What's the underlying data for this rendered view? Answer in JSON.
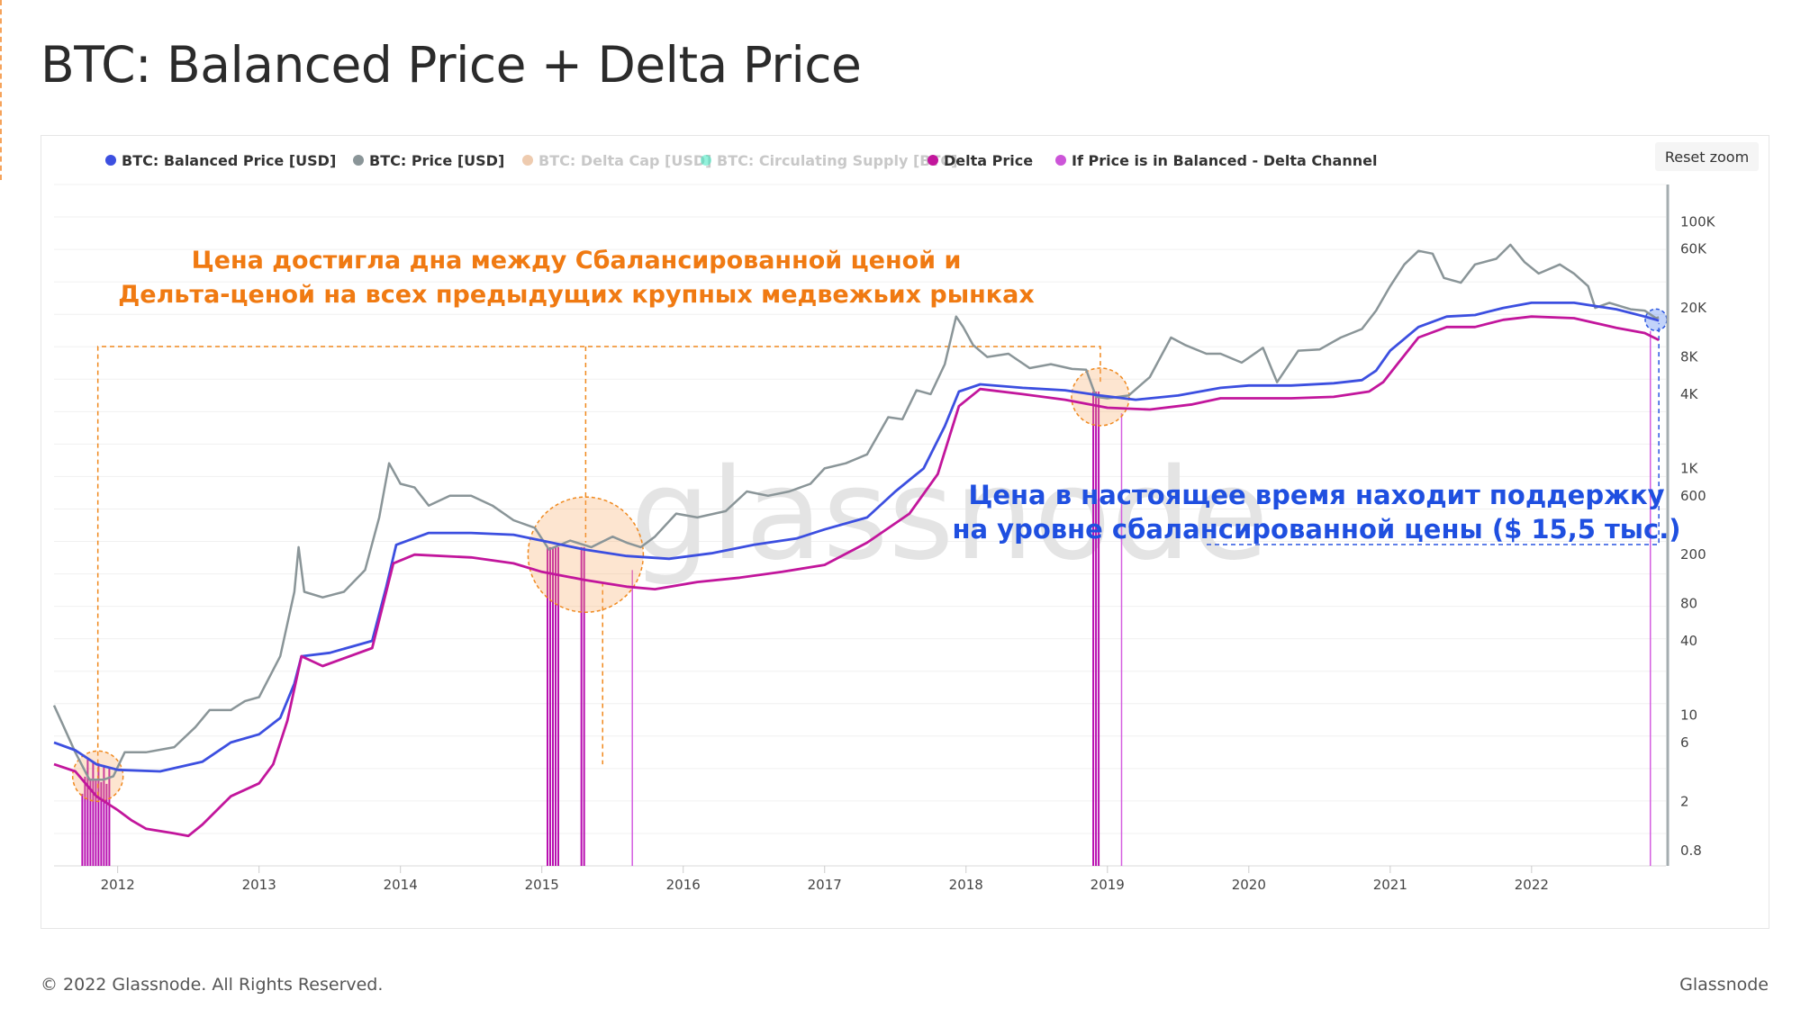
{
  "page": {
    "title": "BTC: Balanced Price + Delta Price",
    "reset_zoom": "Reset zoom",
    "footer_left": "© 2022 Glassnode. All Rights Reserved.",
    "footer_right": "Glassnode",
    "watermark": "glassnode"
  },
  "chart_data": {
    "type": "line",
    "title": "BTC: Balanced Price + Delta Price",
    "yscale": "log",
    "ylim": [
      0.6,
      200000
    ],
    "xlim": [
      2011.55,
      2022.95
    ],
    "x_ticks": [
      "2012",
      "2013",
      "2014",
      "2015",
      "2016",
      "2017",
      "2018",
      "2019",
      "2020",
      "2021",
      "2022"
    ],
    "y_ticks": [
      {
        "label": "100K",
        "value": 100000
      },
      {
        "label": "60K",
        "value": 60000
      },
      {
        "label": "20K",
        "value": 20000
      },
      {
        "label": "8K",
        "value": 8000
      },
      {
        "label": "4K",
        "value": 4000
      },
      {
        "label": "1K",
        "value": 1000
      },
      {
        "label": "600",
        "value": 600
      },
      {
        "label": "200",
        "value": 200
      },
      {
        "label": "80",
        "value": 80
      },
      {
        "label": "40",
        "value": 40
      },
      {
        "label": "10",
        "value": 10
      },
      {
        "label": "6",
        "value": 6
      },
      {
        "label": "2",
        "value": 2
      },
      {
        "label": "0.8",
        "value": 0.8
      }
    ],
    "legend": [
      {
        "name": "BTC: Balanced Price [USD]",
        "color": "#3c4fe0",
        "active": true
      },
      {
        "name": "BTC: Price [USD]",
        "color": "#8a9598",
        "active": true
      },
      {
        "name": "BTC: Delta Cap [USD]",
        "color": "#e0a06e",
        "active": false
      },
      {
        "name": "BTC: Circulating Supply [BTC]",
        "color": "#3ce8c0",
        "active": false
      },
      {
        "name": "Delta Price",
        "color": "#c2169c",
        "active": true
      },
      {
        "name": "If Price is in Balanced - Delta Channel",
        "color": "#cc55d8",
        "active": true
      }
    ],
    "series": [
      {
        "name": "BTC: Price [USD]",
        "color": "#8a9598",
        "points": [
          [
            2011.55,
            12
          ],
          [
            2011.62,
            8
          ],
          [
            2011.7,
            5
          ],
          [
            2011.8,
            3
          ],
          [
            2011.9,
            3
          ],
          [
            2011.97,
            3.2
          ],
          [
            2012.05,
            5
          ],
          [
            2012.2,
            5
          ],
          [
            2012.4,
            5.5
          ],
          [
            2012.55,
            8
          ],
          [
            2012.65,
            11
          ],
          [
            2012.8,
            11
          ],
          [
            2012.9,
            13
          ],
          [
            2013.0,
            14
          ],
          [
            2013.15,
            30
          ],
          [
            2013.25,
            100
          ],
          [
            2013.28,
            230
          ],
          [
            2013.32,
            100
          ],
          [
            2013.45,
            90
          ],
          [
            2013.6,
            100
          ],
          [
            2013.75,
            150
          ],
          [
            2013.85,
            400
          ],
          [
            2013.92,
            1100
          ],
          [
            2014.0,
            750
          ],
          [
            2014.1,
            700
          ],
          [
            2014.2,
            500
          ],
          [
            2014.35,
            600
          ],
          [
            2014.5,
            600
          ],
          [
            2014.65,
            500
          ],
          [
            2014.8,
            380
          ],
          [
            2014.95,
            330
          ],
          [
            2015.05,
            220
          ],
          [
            2015.2,
            260
          ],
          [
            2015.35,
            230
          ],
          [
            2015.5,
            280
          ],
          [
            2015.6,
            250
          ],
          [
            2015.7,
            230
          ],
          [
            2015.8,
            280
          ],
          [
            2015.95,
            430
          ],
          [
            2016.1,
            400
          ],
          [
            2016.3,
            450
          ],
          [
            2016.45,
            650
          ],
          [
            2016.6,
            600
          ],
          [
            2016.75,
            650
          ],
          [
            2016.9,
            750
          ],
          [
            2017.0,
            1000
          ],
          [
            2017.15,
            1100
          ],
          [
            2017.3,
            1300
          ],
          [
            2017.45,
            2600
          ],
          [
            2017.55,
            2500
          ],
          [
            2017.65,
            4300
          ],
          [
            2017.75,
            4000
          ],
          [
            2017.85,
            7000
          ],
          [
            2017.93,
            17000
          ],
          [
            2017.98,
            14000
          ],
          [
            2018.05,
            10000
          ],
          [
            2018.15,
            8000
          ],
          [
            2018.3,
            8500
          ],
          [
            2018.45,
            6500
          ],
          [
            2018.6,
            7000
          ],
          [
            2018.75,
            6400
          ],
          [
            2018.85,
            6300
          ],
          [
            2018.92,
            3800
          ],
          [
            2019.0,
            3700
          ],
          [
            2019.15,
            3900
          ],
          [
            2019.3,
            5500
          ],
          [
            2019.45,
            11500
          ],
          [
            2019.55,
            10000
          ],
          [
            2019.7,
            8500
          ],
          [
            2019.8,
            8500
          ],
          [
            2019.95,
            7200
          ],
          [
            2020.1,
            9500
          ],
          [
            2020.2,
            5000
          ],
          [
            2020.35,
            9000
          ],
          [
            2020.5,
            9200
          ],
          [
            2020.65,
            11500
          ],
          [
            2020.8,
            13500
          ],
          [
            2020.9,
            19000
          ],
          [
            2021.0,
            30000
          ],
          [
            2021.1,
            45000
          ],
          [
            2021.2,
            58000
          ],
          [
            2021.3,
            55000
          ],
          [
            2021.38,
            35000
          ],
          [
            2021.5,
            32000
          ],
          [
            2021.6,
            45000
          ],
          [
            2021.75,
            50000
          ],
          [
            2021.85,
            65000
          ],
          [
            2021.95,
            47000
          ],
          [
            2022.05,
            38000
          ],
          [
            2022.2,
            45000
          ],
          [
            2022.3,
            38000
          ],
          [
            2022.4,
            30000
          ],
          [
            2022.45,
            20000
          ],
          [
            2022.55,
            22000
          ],
          [
            2022.7,
            19500
          ],
          [
            2022.8,
            19000
          ],
          [
            2022.88,
            16500
          ],
          [
            2022.9,
            16800
          ]
        ]
      },
      {
        "name": "BTC: Balanced Price [USD]",
        "color": "#3c4fe0",
        "points": [
          [
            2011.55,
            6
          ],
          [
            2011.7,
            5.2
          ],
          [
            2011.85,
            4
          ],
          [
            2012.0,
            3.6
          ],
          [
            2012.3,
            3.5
          ],
          [
            2012.6,
            4.2
          ],
          [
            2012.8,
            6
          ],
          [
            2013.0,
            7
          ],
          [
            2013.15,
            9.5
          ],
          [
            2013.25,
            18
          ],
          [
            2013.3,
            30
          ],
          [
            2013.5,
            32
          ],
          [
            2013.8,
            40
          ],
          [
            2013.9,
            110
          ],
          [
            2013.97,
            240
          ],
          [
            2014.2,
            300
          ],
          [
            2014.5,
            300
          ],
          [
            2014.8,
            290
          ],
          [
            2015.0,
            260
          ],
          [
            2015.3,
            220
          ],
          [
            2015.6,
            195
          ],
          [
            2015.9,
            185
          ],
          [
            2016.2,
            205
          ],
          [
            2016.5,
            240
          ],
          [
            2016.8,
            270
          ],
          [
            2017.0,
            320
          ],
          [
            2017.3,
            400
          ],
          [
            2017.5,
            650
          ],
          [
            2017.7,
            1000
          ],
          [
            2017.85,
            2200
          ],
          [
            2017.95,
            4200
          ],
          [
            2018.1,
            4800
          ],
          [
            2018.4,
            4500
          ],
          [
            2018.7,
            4300
          ],
          [
            2018.95,
            3900
          ],
          [
            2019.2,
            3600
          ],
          [
            2019.5,
            3900
          ],
          [
            2019.8,
            4500
          ],
          [
            2020.0,
            4700
          ],
          [
            2020.3,
            4700
          ],
          [
            2020.6,
            4900
          ],
          [
            2020.8,
            5200
          ],
          [
            2020.9,
            6200
          ],
          [
            2021.0,
            9000
          ],
          [
            2021.2,
            14000
          ],
          [
            2021.4,
            17000
          ],
          [
            2021.6,
            17500
          ],
          [
            2021.8,
            20000
          ],
          [
            2022.0,
            22000
          ],
          [
            2022.3,
            22000
          ],
          [
            2022.6,
            19500
          ],
          [
            2022.8,
            17000
          ],
          [
            2022.9,
            15800
          ]
        ]
      },
      {
        "name": "Delta Price",
        "color": "#c2169c",
        "points": [
          [
            2011.55,
            4
          ],
          [
            2011.7,
            3.5
          ],
          [
            2011.85,
            2.2
          ],
          [
            2012.0,
            1.7
          ],
          [
            2012.1,
            1.4
          ],
          [
            2012.2,
            1.2
          ],
          [
            2012.4,
            1.1
          ],
          [
            2012.5,
            1.05
          ],
          [
            2012.6,
            1.3
          ],
          [
            2012.8,
            2.2
          ],
          [
            2013.0,
            2.8
          ],
          [
            2013.1,
            4
          ],
          [
            2013.2,
            9
          ],
          [
            2013.3,
            30
          ],
          [
            2013.45,
            25
          ],
          [
            2013.8,
            35
          ],
          [
            2013.95,
            170
          ],
          [
            2014.1,
            200
          ],
          [
            2014.5,
            190
          ],
          [
            2014.8,
            170
          ],
          [
            2015.0,
            145
          ],
          [
            2015.3,
            125
          ],
          [
            2015.6,
            110
          ],
          [
            2015.8,
            105
          ],
          [
            2016.1,
            120
          ],
          [
            2016.4,
            130
          ],
          [
            2016.7,
            145
          ],
          [
            2017.0,
            165
          ],
          [
            2017.3,
            250
          ],
          [
            2017.6,
            430
          ],
          [
            2017.8,
            900
          ],
          [
            2017.95,
            3200
          ],
          [
            2018.1,
            4400
          ],
          [
            2018.4,
            4000
          ],
          [
            2018.7,
            3600
          ],
          [
            2019.0,
            3100
          ],
          [
            2019.3,
            3000
          ],
          [
            2019.6,
            3300
          ],
          [
            2019.8,
            3700
          ],
          [
            2020.0,
            3700
          ],
          [
            2020.3,
            3700
          ],
          [
            2020.6,
            3800
          ],
          [
            2020.85,
            4200
          ],
          [
            2020.95,
            5000
          ],
          [
            2021.05,
            7000
          ],
          [
            2021.2,
            11500
          ],
          [
            2021.4,
            14000
          ],
          [
            2021.6,
            14000
          ],
          [
            2021.8,
            16000
          ],
          [
            2022.0,
            17000
          ],
          [
            2022.3,
            16500
          ],
          [
            2022.6,
            13800
          ],
          [
            2022.8,
            12500
          ],
          [
            2022.9,
            11000
          ]
        ]
      }
    ],
    "channel_bars": [
      {
        "from": 2011.75,
        "to": 2011.95,
        "style": "dense"
      },
      {
        "from": 2015.04,
        "to": 2015.12,
        "style": "dense"
      },
      {
        "from": 2015.28,
        "to": 2015.31,
        "style": "dense"
      },
      {
        "from": 2015.64,
        "to": 2015.65,
        "style": "thin"
      },
      {
        "from": 2018.9,
        "to": 2018.95,
        "style": "dense"
      },
      {
        "from": 2019.1,
        "to": 2019.11,
        "style": "thin"
      },
      {
        "from": 2022.84,
        "to": 2022.85,
        "style": "thin"
      }
    ],
    "annotations": {
      "orange": [
        "Цена достигла дна между Сбалансированной ценой и",
        "Дельта-ценой на всех предыдущих крупных медвежьих рынках"
      ],
      "blue": [
        "Цена в настоящее время находит поддержку",
        "на уровне сбалансированной цены ($ 15,5 тыс.)"
      ]
    },
    "highlight_circles": [
      {
        "x": 2011.86,
        "y": 3.2
      },
      {
        "x": 2015.31,
        "y": 200
      },
      {
        "x": 2018.95,
        "y": 3800
      },
      {
        "x": 2022.88,
        "y": 16000
      }
    ]
  }
}
